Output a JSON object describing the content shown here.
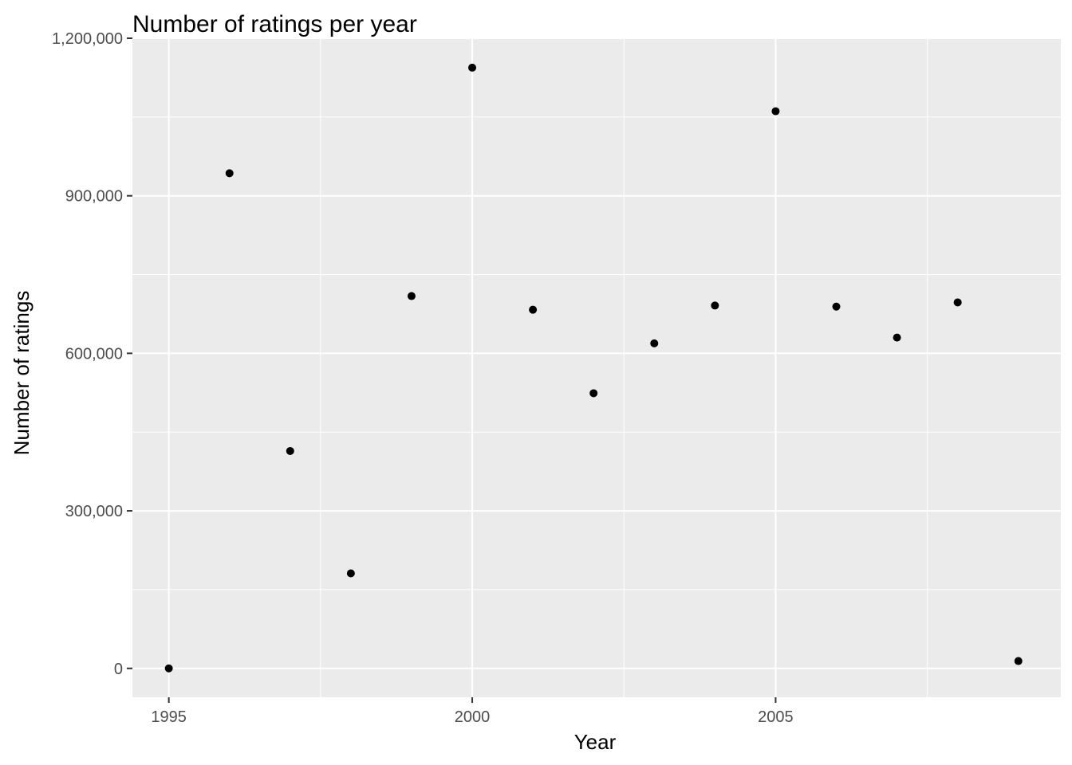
{
  "chart_data": {
    "type": "scatter",
    "title": "Number of ratings per year",
    "xlabel": "Year",
    "ylabel": "Number of ratings",
    "xlim": [
      1994.4,
      2009.7
    ],
    "ylim": [
      -55000,
      1200000
    ],
    "x_ticks": [
      1995,
      2000,
      2005
    ],
    "x_tick_labels": [
      "1995",
      "2000",
      "2005"
    ],
    "y_ticks": [
      0,
      300000,
      600000,
      900000,
      1200000
    ],
    "y_tick_labels": [
      "0",
      "300,000",
      "600,000",
      "900,000",
      "1,200,000"
    ],
    "grid": true,
    "legend": "none",
    "point_color": "#000000",
    "panel_background": "#ebebeb",
    "grid_color": "#ffffff",
    "points": [
      {
        "x": 1995,
        "y": 2
      },
      {
        "x": 1996,
        "y": 943000
      },
      {
        "x": 1997,
        "y": 414000
      },
      {
        "x": 1998,
        "y": 181000
      },
      {
        "x": 1999,
        "y": 709000
      },
      {
        "x": 2000,
        "y": 1144000
      },
      {
        "x": 2001,
        "y": 683000
      },
      {
        "x": 2002,
        "y": 524000
      },
      {
        "x": 2003,
        "y": 619000
      },
      {
        "x": 2004,
        "y": 691000
      },
      {
        "x": 2005,
        "y": 1061000
      },
      {
        "x": 2006,
        "y": 689000
      },
      {
        "x": 2007,
        "y": 630000
      },
      {
        "x": 2008,
        "y": 697000
      },
      {
        "x": 2009,
        "y": 14000
      }
    ]
  }
}
